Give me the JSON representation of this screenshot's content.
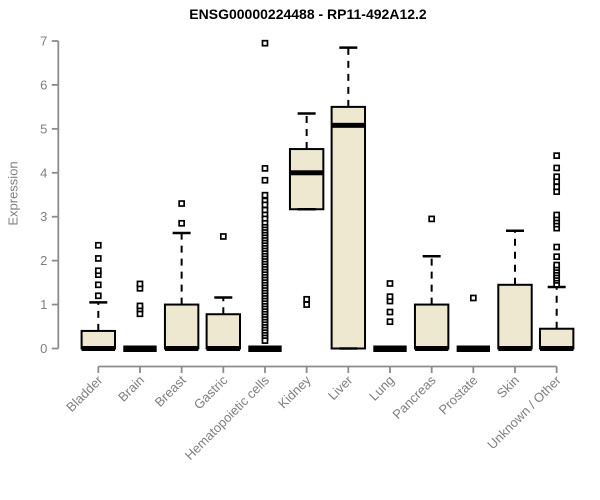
{
  "title": "ENSG00000224488 - RP11-492A12.2",
  "chart_data": {
    "type": "boxplot",
    "title": "ENSG00000224488 - RP11-492A12.2",
    "xlabel": "",
    "ylabel": "Expression",
    "ylim": [
      0,
      7
    ],
    "yticks": [
      0,
      1,
      2,
      3,
      4,
      5,
      6,
      7
    ],
    "grid": false,
    "legend": null,
    "categories": [
      "Bladder",
      "Brain",
      "Breast",
      "Gastric",
      "Hematopoietic cells",
      "Kidney",
      "Liver",
      "Lung",
      "Pancreas",
      "Prostate",
      "Skin",
      "Unknown / Other"
    ],
    "boxes": [
      {
        "category": "Bladder",
        "whisker_low": 0,
        "q1": 0,
        "median": 0,
        "q3": 0.4,
        "whisker_high": 1.05,
        "outliers": [
          1.2,
          1.45,
          1.68,
          1.77,
          2.05,
          2.35
        ]
      },
      {
        "category": "Brain",
        "whisker_low": 0,
        "q1": 0,
        "median": 0,
        "q3": 0,
        "whisker_high": 0,
        "outliers": [
          0.79,
          0.9,
          0.97,
          1.37,
          1.47
        ]
      },
      {
        "category": "Breast",
        "whisker_low": 0,
        "q1": 0,
        "median": 0,
        "q3": 1.0,
        "whisker_high": 2.63,
        "outliers": [
          2.85,
          3.3
        ]
      },
      {
        "category": "Gastric",
        "whisker_low": 0,
        "q1": 0,
        "median": 0,
        "q3": 0.78,
        "whisker_high": 1.16,
        "outliers": [
          2.55
        ]
      },
      {
        "category": "Hematopoietic cells",
        "whisker_low": 0,
        "q1": 0,
        "median": 0,
        "q3": 0,
        "whisker_high": 0,
        "outliers": [
          6.95,
          4.1,
          3.83,
          3.49,
          3.36,
          3.27,
          3.15,
          3.04,
          2.95,
          2.85,
          2.76,
          2.7,
          2.64,
          2.58,
          2.52,
          2.46,
          2.4,
          2.34,
          2.28,
          2.22,
          2.16,
          2.1,
          2.04,
          1.98,
          1.92,
          1.86,
          1.8,
          1.74,
          1.68,
          1.62,
          1.56,
          1.5,
          1.44,
          1.38,
          1.32,
          1.26,
          1.2,
          1.14,
          1.08,
          1.02,
          0.96,
          0.9,
          0.84,
          0.78,
          0.72,
          0.66,
          0.6,
          0.54,
          0.48,
          0.42,
          0.36,
          0.3,
          0.24,
          0.18
        ]
      },
      {
        "category": "Kidney",
        "whisker_low": 3.17,
        "q1": 3.17,
        "median": 4.0,
        "q3": 4.54,
        "whisker_high": 5.35,
        "outliers": [
          1.0,
          1.12
        ]
      },
      {
        "category": "Liver",
        "whisker_low": 0,
        "q1": 0,
        "median": 5.08,
        "q3": 5.5,
        "whisker_high": 6.85,
        "outliers": []
      },
      {
        "category": "Lung",
        "whisker_low": 0,
        "q1": 0,
        "median": 0,
        "q3": 0,
        "whisker_high": 0,
        "outliers": [
          0.61,
          0.83,
          1.08,
          1.18,
          1.48
        ]
      },
      {
        "category": "Pancreas",
        "whisker_low": 0,
        "q1": 0,
        "median": 0,
        "q3": 1.0,
        "whisker_high": 2.1,
        "outliers": [
          2.95
        ]
      },
      {
        "category": "Prostate",
        "whisker_low": 0,
        "q1": 0,
        "median": 0,
        "q3": 0,
        "whisker_high": 0,
        "outliers": [
          1.15
        ]
      },
      {
        "category": "Skin",
        "whisker_low": 0,
        "q1": 0,
        "median": 0,
        "q3": 1.45,
        "whisker_high": 2.68,
        "outliers": []
      },
      {
        "category": "Unknown / Other",
        "whisker_low": 0,
        "q1": 0,
        "median": 0,
        "q3": 0.45,
        "whisker_high": 1.4,
        "outliers": [
          1.46,
          1.55,
          1.6,
          1.66,
          1.72,
          1.78,
          1.84,
          1.9,
          2.09,
          2.31,
          2.74,
          2.83,
          2.9,
          2.97,
          3.04,
          3.57,
          3.68,
          3.8,
          3.91,
          4.11,
          4.39
        ]
      }
    ],
    "colors": {
      "box_fill": "#EDE8CF",
      "box_border": "#000000",
      "median": "#000000",
      "whisker": "#000000",
      "outlier": "#000000",
      "axis_line": "#8c8c8c",
      "tick_label": "#7f7f7f",
      "title": "#000000",
      "background": "#ffffff"
    }
  }
}
